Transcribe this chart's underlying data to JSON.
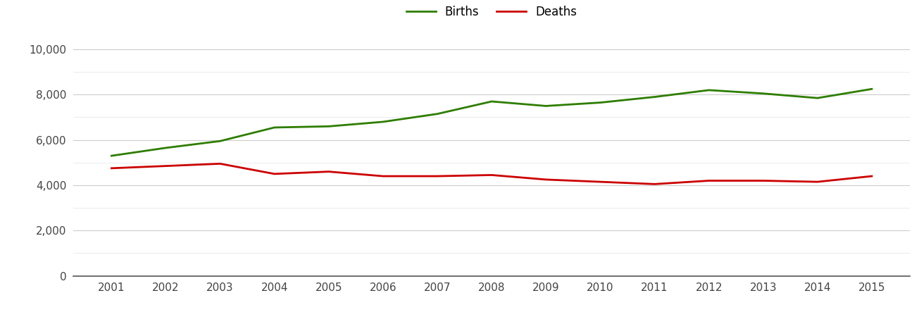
{
  "years": [
    2001,
    2002,
    2003,
    2004,
    2005,
    2006,
    2007,
    2008,
    2009,
    2010,
    2011,
    2012,
    2013,
    2014,
    2015
  ],
  "births": [
    5300,
    5650,
    5950,
    6550,
    6600,
    6800,
    7150,
    7700,
    7500,
    7650,
    7900,
    8200,
    8050,
    7850,
    8250
  ],
  "deaths": [
    4750,
    4850,
    4950,
    4500,
    4600,
    4400,
    4400,
    4450,
    4250,
    4150,
    4050,
    4200,
    4200,
    4150,
    4400
  ],
  "births_color": "#2e7d00",
  "deaths_color": "#cc0000",
  "background_color": "#ffffff",
  "grid_color": "#cccccc",
  "minor_grid_color": "#e8e8e8",
  "line_width": 2.0,
  "ylim": [
    0,
    10500
  ],
  "yticks": [
    0,
    2000,
    4000,
    6000,
    8000,
    10000
  ],
  "legend_labels": [
    "Births",
    "Deaths"
  ]
}
